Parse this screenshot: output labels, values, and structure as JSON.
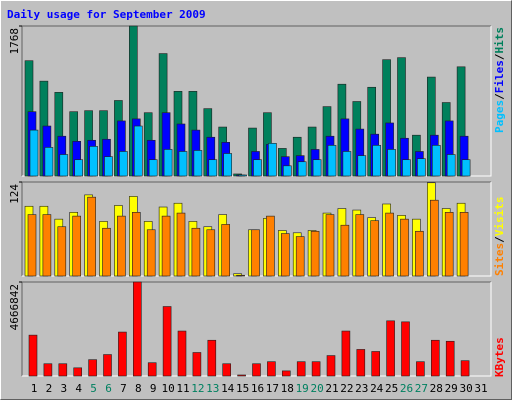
{
  "chart_data": {
    "type": "bar",
    "title": "Daily usage for September 2009",
    "categories": [
      "1",
      "2",
      "3",
      "4",
      "5",
      "6",
      "7",
      "8",
      "9",
      "10",
      "11",
      "12",
      "13",
      "14",
      "15",
      "16",
      "17",
      "18",
      "19",
      "20",
      "21",
      "22",
      "23",
      "24",
      "25",
      "26",
      "27",
      "28",
      "29",
      "30",
      "31"
    ],
    "category_colors": [
      "#000000",
      "#000000",
      "#000000",
      "#000000",
      "#008060",
      "#008060",
      "#000000",
      "#000000",
      "#000000",
      "#000000",
      "#000000",
      "#008060",
      "#008060",
      "#000000",
      "#000000",
      "#000000",
      "#000000",
      "#000000",
      "#008060",
      "#008060",
      "#000000",
      "#000000",
      "#000000",
      "#000000",
      "#000000",
      "#008060",
      "#008060",
      "#000000",
      "#000000",
      "#000000",
      "#000000"
    ],
    "panels": [
      {
        "ylim": [
          0,
          1768
        ],
        "yticks": [
          1768
        ],
        "legend_separator": "/",
        "series": [
          {
            "name": "Hits",
            "color": "#00805c",
            "values": [
              1359,
              1118,
              986,
              758,
              770,
              770,
              890,
              1768,
              746,
              1443,
              998,
              998,
              794,
              577,
              24,
              565,
              746,
              325,
              457,
              577,
              818,
              1082,
              878,
              1046,
              1371,
              1395,
              481,
              1166,
              866,
              1287,
              null
            ]
          },
          {
            "name": "Files",
            "color": "#0000ff",
            "values": [
              758,
              589,
              469,
              409,
              421,
              433,
              649,
              673,
              421,
              746,
              613,
              541,
              457,
              397,
              12,
              289,
              373,
              228,
              240,
              313,
              469,
              673,
              553,
              493,
              625,
              445,
              289,
              481,
              649,
              469,
              null
            ]
          },
          {
            "name": "Pages",
            "color": "#00c0ff",
            "values": [
              541,
              337,
              253,
              192,
              349,
              228,
              289,
              589,
              192,
              313,
              289,
              301,
              192,
              265,
              12,
              192,
              385,
              120,
              168,
              192,
              361,
              289,
              240,
              361,
              313,
              192,
              204,
              361,
              253,
              192,
              null
            ]
          }
        ]
      },
      {
        "ylim": [
          0,
          124
        ],
        "yticks": [
          124
        ],
        "legend_separator": "/",
        "series": [
          {
            "name": "Visits",
            "color": "#ffff00",
            "values": [
              92,
              92,
              75,
              84,
              107,
              72,
              93,
              105,
              72,
              91,
              96,
              72,
              65,
              81,
              3,
              61,
              76,
              60,
              57,
              60,
              83,
              89,
              87,
              77,
              95,
              80,
              75,
              123,
              89,
              96,
              null
            ]
          },
          {
            "name": "Sites",
            "color": "#ff8000",
            "values": [
              81,
              81,
              65,
              79,
              104,
              63,
              79,
              84,
              61,
              79,
              83,
              63,
              61,
              68,
              1,
              61,
              79,
              56,
              52,
              59,
              81,
              67,
              81,
              73,
              83,
              75,
              59,
              100,
              84,
              84,
              null
            ]
          }
        ]
      },
      {
        "ylim": [
          0,
          4666842
        ],
        "yticks": [
          4666842
        ],
        "legend_separator": "/",
        "series": [
          {
            "name": "KBytes",
            "color": "#ff0000",
            "values": [
              2029062,
              608700,
              608700,
              405800,
              811600,
              1065225,
              2181242,
              4666842,
              659425,
              3449405,
              2231967,
              1166735,
              1775429,
              608700,
              50726,
              608700,
              710170,
              253630,
              710170,
              710170,
              1014531,
              2231967,
              1318890,
              1217437,
              2739234,
              2688508,
              710170,
              1775429,
              1724703,
              760896,
              null
            ]
          }
        ]
      }
    ]
  }
}
